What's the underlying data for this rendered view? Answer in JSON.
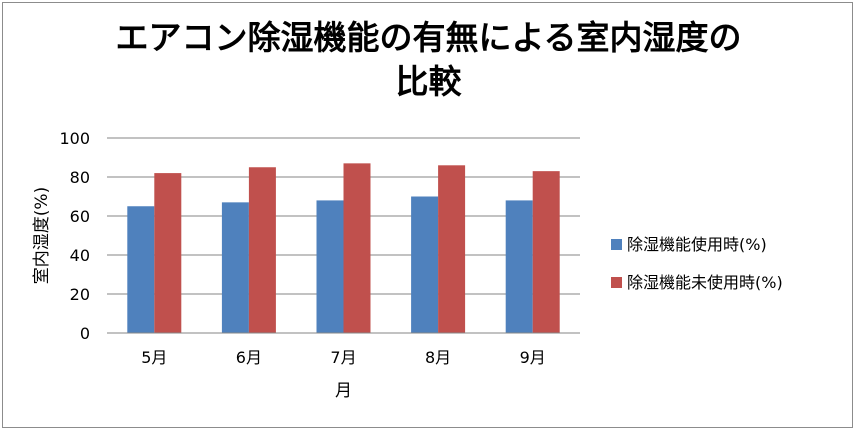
{
  "chart_data": {
    "type": "bar",
    "title_line1": "エアコン除湿機能の有無による室内湿度の",
    "title_line2": "比較",
    "xlabel": "月",
    "ylabel": "室内湿度(%)",
    "categories": [
      "5月",
      "6月",
      "7月",
      "8月",
      "9月"
    ],
    "ylim": [
      0,
      100
    ],
    "yticks": [
      "0",
      "20",
      "40",
      "60",
      "80",
      "100"
    ],
    "grid": true,
    "legend_position": "right",
    "series": [
      {
        "name": "除湿機能使用時(%)",
        "color": "#4f81bd",
        "values": [
          65,
          67,
          68,
          70,
          68
        ]
      },
      {
        "name": "除湿機能未使用時(%)",
        "color": "#c0504d",
        "values": [
          82,
          85,
          87,
          86,
          83
        ]
      }
    ]
  }
}
